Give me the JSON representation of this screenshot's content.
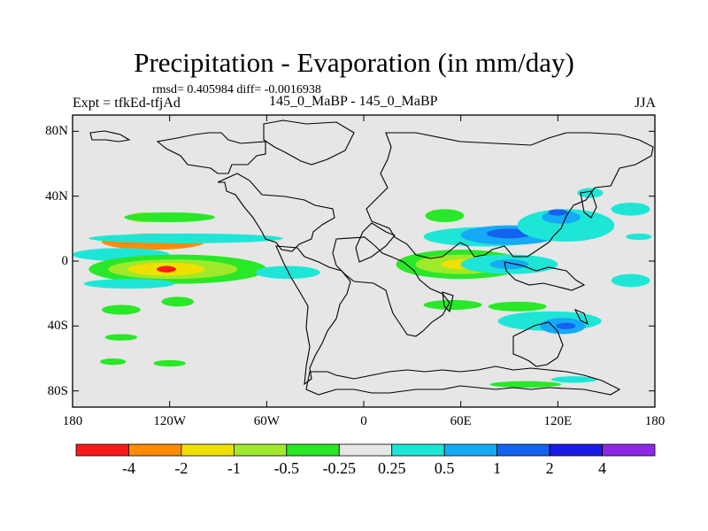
{
  "title": "Precipitation - Evaporation (in mm/day)",
  "stats_line": "rmsd= 0.405984 diff= -0.0016938",
  "experiment": "Expt = tfkEd-tfjAd",
  "case_label": "145_0_MaBP - 145_0_MaBP",
  "season": "JJA",
  "chart_data": {
    "type": "heatmap",
    "variable": "Precipitation - Evaporation",
    "units": "mm/day",
    "xlim": [
      -180,
      180
    ],
    "ylim": [
      -90,
      90
    ],
    "xticks": [
      {
        "value": -180,
        "label": "180"
      },
      {
        "value": -120,
        "label": "120W"
      },
      {
        "value": -60,
        "label": "60W"
      },
      {
        "value": 0,
        "label": "0"
      },
      {
        "value": 60,
        "label": "60E"
      },
      {
        "value": 120,
        "label": "120E"
      },
      {
        "value": 180,
        "label": "180"
      }
    ],
    "yticks": [
      {
        "value": 80,
        "label": "80N"
      },
      {
        "value": 40,
        "label": "40N"
      },
      {
        "value": 0,
        "label": "0"
      },
      {
        "value": -40,
        "label": "40S"
      },
      {
        "value": -80,
        "label": "80S"
      }
    ],
    "colorbar": {
      "levels": [
        "-4",
        "-2",
        "-1",
        "-0.5",
        "-0.25",
        "0.25",
        "0.5",
        "1",
        "2",
        "4"
      ],
      "colors": [
        "#ff1a1a",
        "#ff8c00",
        "#f0e000",
        "#a0e82a",
        "#28e828",
        "#e6e6e6",
        "#1ee6d6",
        "#14aaf5",
        "#1462f0",
        "#1a1ae6",
        "#8c28e6"
      ]
    },
    "regions": [
      {
        "value_class": 1,
        "lon": -130,
        "lat": 12,
        "rx": 32,
        "ry": 5
      },
      {
        "value_class": 3,
        "lon": -135,
        "lat": 27,
        "rx": 12,
        "ry": 3
      },
      {
        "value_class": 4,
        "lon": -120,
        "lat": 27,
        "rx": 28,
        "ry": 3
      },
      {
        "value_class": 6,
        "lon": -110,
        "lat": 14,
        "rx": 60,
        "ry": 3
      },
      {
        "value_class": 6,
        "lon": -150,
        "lat": 4,
        "rx": 30,
        "ry": 4
      },
      {
        "value_class": 4,
        "lon": -115,
        "lat": -5,
        "rx": 55,
        "ry": 9
      },
      {
        "value_class": 3,
        "lon": -118,
        "lat": -5,
        "rx": 40,
        "ry": 6
      },
      {
        "value_class": 2,
        "lon": -122,
        "lat": -5,
        "rx": 24,
        "ry": 4
      },
      {
        "value_class": 0,
        "lon": -122,
        "lat": -5,
        "rx": 6,
        "ry": 2
      },
      {
        "value_class": 6,
        "lon": -145,
        "lat": -14,
        "rx": 28,
        "ry": 3
      },
      {
        "value_class": 4,
        "lon": -150,
        "lat": -30,
        "rx": 12,
        "ry": 3
      },
      {
        "value_class": 4,
        "lon": -115,
        "lat": -25,
        "rx": 10,
        "ry": 3
      },
      {
        "value_class": 4,
        "lon": -150,
        "lat": -47,
        "rx": 10,
        "ry": 2
      },
      {
        "value_class": 4,
        "lon": -155,
        "lat": -62,
        "rx": 8,
        "ry": 2
      },
      {
        "value_class": 4,
        "lon": -120,
        "lat": -63,
        "rx": 10,
        "ry": 2
      },
      {
        "value_class": 6,
        "lon": -47,
        "lat": -7,
        "rx": 20,
        "ry": 4
      },
      {
        "value_class": 4,
        "lon": 50,
        "lat": 28,
        "rx": 12,
        "ry": 4
      },
      {
        "value_class": 6,
        "lon": 75,
        "lat": 15,
        "rx": 38,
        "ry": 6
      },
      {
        "value_class": 7,
        "lon": 90,
        "lat": 16,
        "rx": 30,
        "ry": 6
      },
      {
        "value_class": 8,
        "lon": 90,
        "lat": 17,
        "rx": 14,
        "ry": 3
      },
      {
        "value_class": 6,
        "lon": 125,
        "lat": 22,
        "rx": 30,
        "ry": 10
      },
      {
        "value_class": 7,
        "lon": 122,
        "lat": 27,
        "rx": 12,
        "ry": 4
      },
      {
        "value_class": 8,
        "lon": 120,
        "lat": 30,
        "rx": 6,
        "ry": 2
      },
      {
        "value_class": 6,
        "lon": 140,
        "lat": 42,
        "rx": 8,
        "ry": 3
      },
      {
        "value_class": 4,
        "lon": 60,
        "lat": -2,
        "rx": 40,
        "ry": 9
      },
      {
        "value_class": 3,
        "lon": 60,
        "lat": -2,
        "rx": 28,
        "ry": 6
      },
      {
        "value_class": 2,
        "lon": 60,
        "lat": -2,
        "rx": 12,
        "ry": 3
      },
      {
        "value_class": 6,
        "lon": 90,
        "lat": -2,
        "rx": 30,
        "ry": 6
      },
      {
        "value_class": 7,
        "lon": 90,
        "lat": -2,
        "rx": 12,
        "ry": 3
      },
      {
        "value_class": 6,
        "lon": 115,
        "lat": -37,
        "rx": 32,
        "ry": 6
      },
      {
        "value_class": 7,
        "lon": 123,
        "lat": -40,
        "rx": 14,
        "ry": 5
      },
      {
        "value_class": 8,
        "lon": 125,
        "lat": -40,
        "rx": 6,
        "ry": 2
      },
      {
        "value_class": 4,
        "lon": 95,
        "lat": -28,
        "rx": 18,
        "ry": 3
      },
      {
        "value_class": 4,
        "lon": 55,
        "lat": -27,
        "rx": 18,
        "ry": 3
      },
      {
        "value_class": 4,
        "lon": 100,
        "lat": -76,
        "rx": 22,
        "ry": 2
      },
      {
        "value_class": 6,
        "lon": 130,
        "lat": -73,
        "rx": 14,
        "ry": 2
      },
      {
        "value_class": 6,
        "lon": 165,
        "lat": 32,
        "rx": 12,
        "ry": 4
      },
      {
        "value_class": 6,
        "lon": 165,
        "lat": -12,
        "rx": 12,
        "ry": 4
      },
      {
        "value_class": 6,
        "lon": 170,
        "lat": 15,
        "rx": 8,
        "ry": 2
      }
    ]
  }
}
